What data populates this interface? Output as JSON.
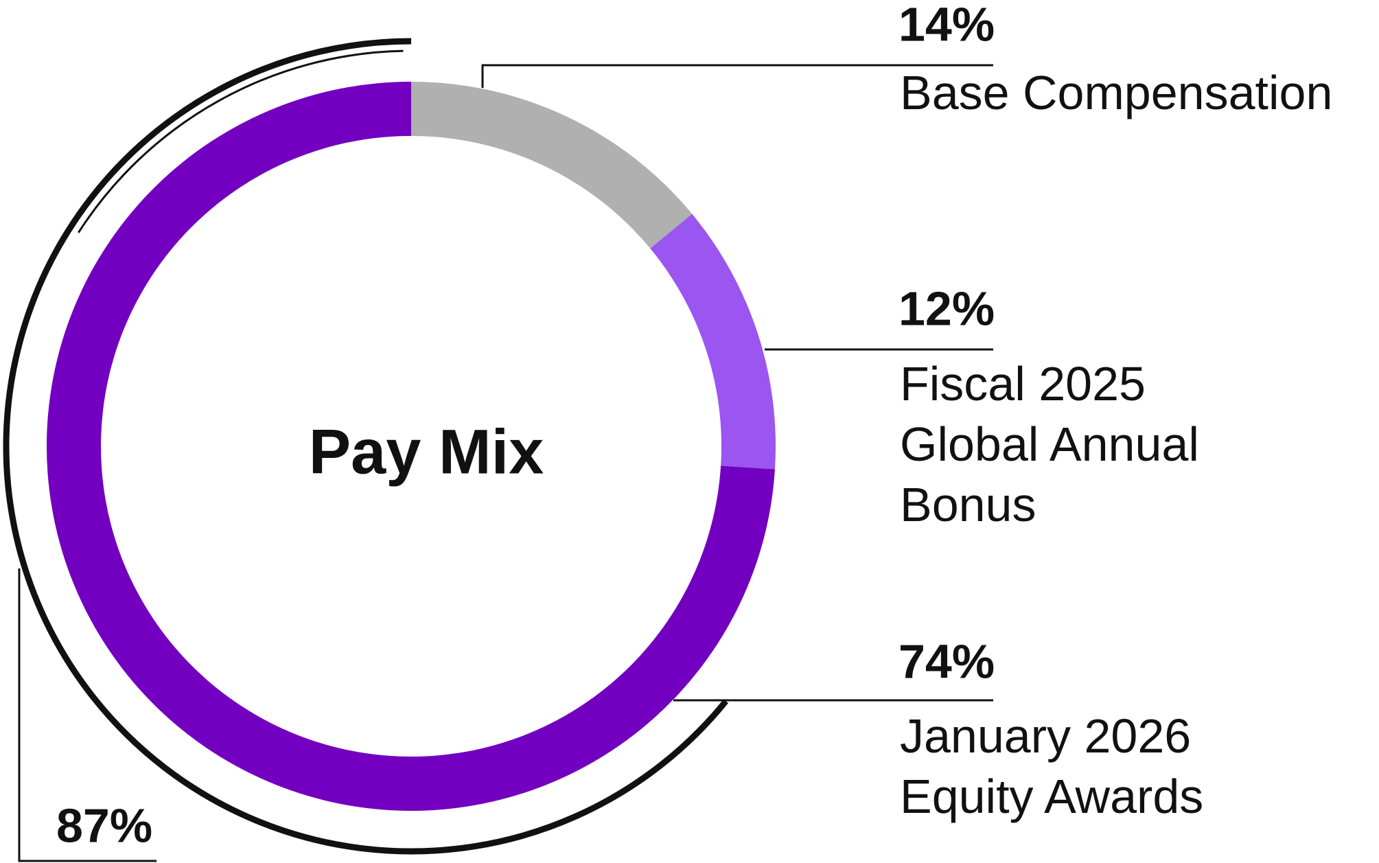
{
  "chart_data": {
    "type": "donut",
    "title": "Pay Mix",
    "categories": [
      "Base Compensation",
      "Fiscal 2025\nGlobal Annual\nBonus",
      "January 2026\nEquity Awards"
    ],
    "values": [
      14,
      12,
      74
    ],
    "value_labels": [
      "14%",
      "12%",
      "74%"
    ],
    "colors": [
      "#b0b0b0",
      "#9b55f0",
      "#7300c0"
    ],
    "annotation": "87%"
  }
}
